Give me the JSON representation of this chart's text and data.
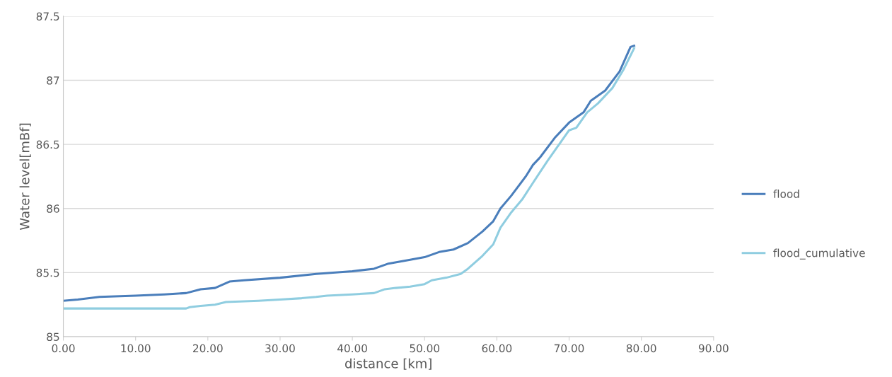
{
  "chart_data": {
    "type": "line",
    "xlabel": "distance [km]",
    "ylabel": "Water level[mBf]",
    "xlim": [
      0,
      90
    ],
    "ylim": [
      85,
      87.5
    ],
    "xticks": [
      {
        "value": 0,
        "label": "0.00"
      },
      {
        "value": 10,
        "label": "10.00"
      },
      {
        "value": 20,
        "label": "20.00"
      },
      {
        "value": 30,
        "label": "30.00"
      },
      {
        "value": 40,
        "label": "40.00"
      },
      {
        "value": 50,
        "label": "50.00"
      },
      {
        "value": 60,
        "label": "60.00"
      },
      {
        "value": 70,
        "label": "70.00"
      },
      {
        "value": 80,
        "label": "80.00"
      },
      {
        "value": 90,
        "label": "90.00"
      }
    ],
    "yticks": [
      85,
      85.5,
      86,
      86.5,
      87,
      87.5
    ],
    "grid": "y",
    "legend": "right",
    "marker": "none",
    "line_style": "solid",
    "series": [
      {
        "name": "flood",
        "color": "#4a7ebb",
        "x": [
          0,
          2,
          5,
          10,
          14,
          17,
          19,
          21,
          23,
          25,
          30,
          35,
          40,
          43,
          45,
          48,
          50,
          52,
          54,
          56,
          58,
          59.5,
          60.5,
          62,
          64,
          65,
          66,
          68,
          70,
          72,
          73,
          75,
          77,
          78.5,
          79
        ],
        "values": [
          85.28,
          85.29,
          85.31,
          85.32,
          85.33,
          85.34,
          85.37,
          85.38,
          85.43,
          85.44,
          85.46,
          85.49,
          85.51,
          85.53,
          85.57,
          85.6,
          85.62,
          85.66,
          85.68,
          85.73,
          85.82,
          85.9,
          86.0,
          86.1,
          86.25,
          86.34,
          86.4,
          86.55,
          86.67,
          86.75,
          86.84,
          86.92,
          87.07,
          87.26,
          87.27
        ]
      },
      {
        "name": "flood_cumulative",
        "color": "#8fcde0",
        "x": [
          0,
          17,
          17.5,
          19,
          21,
          22.5,
          27,
          30,
          33,
          35,
          36.5,
          40,
          43,
          44.5,
          46,
          48,
          50,
          51,
          53,
          55,
          56,
          58,
          59.5,
          60.5,
          62,
          63.5,
          65,
          67,
          69,
          70,
          71,
          72.5,
          74,
          76,
          77.5,
          79
        ],
        "values": [
          85.22,
          85.22,
          85.23,
          85.24,
          85.25,
          85.27,
          85.28,
          85.29,
          85.3,
          85.31,
          85.32,
          85.33,
          85.34,
          85.37,
          85.38,
          85.39,
          85.41,
          85.44,
          85.46,
          85.49,
          85.53,
          85.63,
          85.72,
          85.85,
          85.97,
          86.07,
          86.2,
          86.37,
          86.53,
          86.61,
          86.63,
          86.75,
          86.82,
          86.94,
          87.08,
          87.25
        ]
      }
    ]
  }
}
